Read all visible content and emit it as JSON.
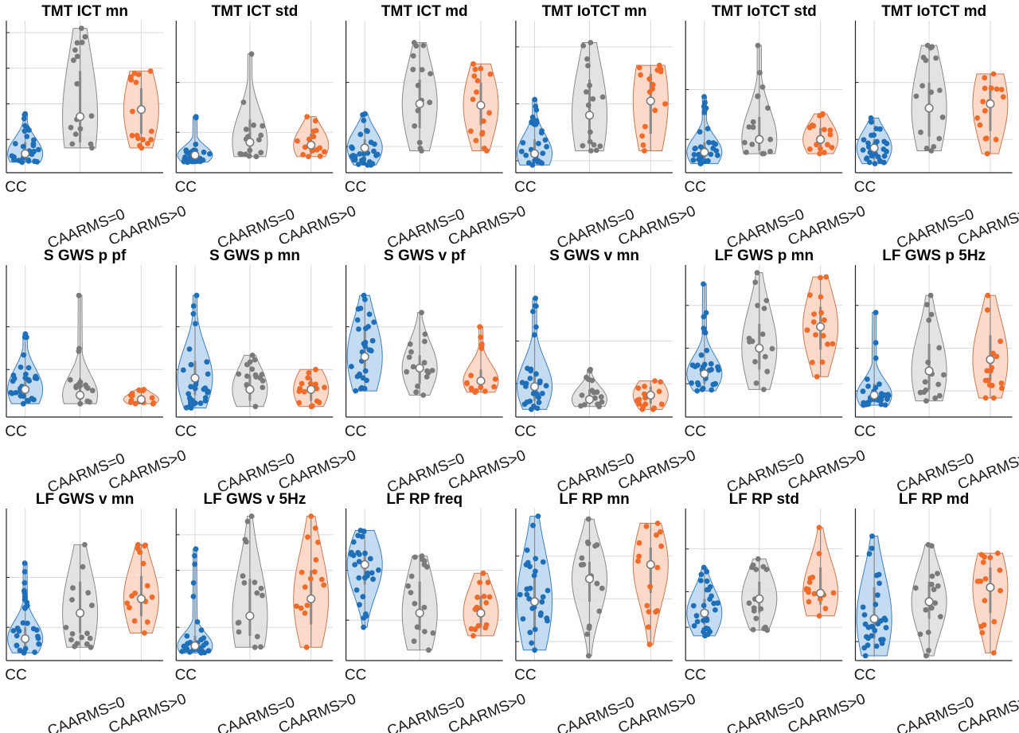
{
  "figure": {
    "categories": [
      "CC",
      "CAARMS=0",
      "CAARMS>0"
    ],
    "colors": {
      "CC": {
        "face": "#b9d6ee",
        "edge": "#3f7fbf",
        "point": "#1f6fb8"
      },
      "CAARMS=0": {
        "face": "#dedede",
        "edge": "#8a8a8a",
        "point": "#7a7a7a"
      },
      "CAARMS>0": {
        "face": "#fcd2be",
        "edge": "#c87a55",
        "point": "#f06a2a"
      },
      "median_fill": "#ffffff",
      "median_edge": "#777777",
      "whisker": "#8a8a8a",
      "grid": "#d9d9d9",
      "axis": "#222222"
    }
  },
  "chart_data": [
    {
      "type": "violin",
      "title": "TMT ICT mn",
      "grid": true,
      "yticks": [
        0.2,
        0.45,
        0.7,
        0.95
      ],
      "series": [
        {
          "name": "CC",
          "min": 0.04,
          "max": 0.38,
          "median": 0.1,
          "q1": 0.06,
          "q3": 0.18,
          "n": 30
        },
        {
          "name": "CAARMS=0",
          "min": 0.14,
          "max": 0.98,
          "median": 0.36,
          "q1": 0.18,
          "q3": 0.68,
          "n": 16
        },
        {
          "name": "CAARMS>0",
          "min": 0.14,
          "max": 0.68,
          "median": 0.41,
          "q1": 0.24,
          "q3": 0.56,
          "n": 16
        }
      ]
    },
    {
      "type": "violin",
      "title": "TMT ICT std",
      "grid": true,
      "yticks": [
        0.25,
        0.6
      ],
      "series": [
        {
          "name": "CC",
          "min": 0.04,
          "max": 0.36,
          "median": 0.09,
          "q1": 0.06,
          "q3": 0.13,
          "n": 30
        },
        {
          "name": "CAARMS=0",
          "min": 0.08,
          "max": 0.8,
          "median": 0.18,
          "q1": 0.1,
          "q3": 0.34,
          "n": 16
        },
        {
          "name": "CAARMS>0",
          "min": 0.08,
          "max": 0.36,
          "median": 0.16,
          "q1": 0.1,
          "q3": 0.24,
          "n": 16
        }
      ]
    },
    {
      "type": "violin",
      "title": "TMT ICT md",
      "grid": true,
      "yticks": [
        0.15,
        0.6
      ],
      "series": [
        {
          "name": "CC",
          "min": 0.02,
          "max": 0.38,
          "median": 0.14,
          "q1": 0.06,
          "q3": 0.2,
          "n": 30
        },
        {
          "name": "CAARMS=0",
          "min": 0.12,
          "max": 0.88,
          "median": 0.45,
          "q1": 0.28,
          "q3": 0.62,
          "n": 16
        },
        {
          "name": "CAARMS>0",
          "min": 0.12,
          "max": 0.73,
          "median": 0.44,
          "q1": 0.3,
          "q3": 0.6,
          "n": 16
        }
      ]
    },
    {
      "type": "violin",
      "title": "TMT IoTCT mn",
      "grid": true,
      "yticks": [
        0.05,
        0.45,
        0.85
      ],
      "series": [
        {
          "name": "CC",
          "min": 0.02,
          "max": 0.48,
          "median": 0.1,
          "q1": 0.05,
          "q3": 0.2,
          "n": 30
        },
        {
          "name": "CAARMS=0",
          "min": 0.12,
          "max": 0.88,
          "median": 0.37,
          "q1": 0.2,
          "q3": 0.62,
          "n": 16
        },
        {
          "name": "CAARMS>0",
          "min": 0.12,
          "max": 0.72,
          "median": 0.47,
          "q1": 0.24,
          "q3": 0.66,
          "n": 16
        }
      ]
    },
    {
      "type": "violin",
      "title": "TMT IoTCT std",
      "grid": true,
      "yticks": [
        0.2,
        0.55
      ],
      "series": [
        {
          "name": "CC",
          "min": 0.03,
          "max": 0.5,
          "median": 0.11,
          "q1": 0.06,
          "q3": 0.18,
          "n": 30
        },
        {
          "name": "CAARMS=0",
          "min": 0.1,
          "max": 0.86,
          "median": 0.2,
          "q1": 0.12,
          "q3": 0.36,
          "n": 16
        },
        {
          "name": "CAARMS>0",
          "min": 0.1,
          "max": 0.38,
          "median": 0.2,
          "q1": 0.14,
          "q3": 0.28,
          "n": 16
        }
      ]
    },
    {
      "type": "violin",
      "title": "TMT IoTCT md",
      "grid": true,
      "yticks": [
        0.2,
        0.6
      ],
      "series": [
        {
          "name": "CC",
          "min": 0.03,
          "max": 0.35,
          "median": 0.14,
          "q1": 0.06,
          "q3": 0.2,
          "n": 30
        },
        {
          "name": "CAARMS=0",
          "min": 0.12,
          "max": 0.86,
          "median": 0.42,
          "q1": 0.22,
          "q3": 0.6,
          "n": 16
        },
        {
          "name": "CAARMS>0",
          "min": 0.1,
          "max": 0.66,
          "median": 0.45,
          "q1": 0.26,
          "q3": 0.58,
          "n": 16
        }
      ]
    },
    {
      "type": "violin",
      "title": "S GWS p pf",
      "grid": true,
      "yticks": [
        0.3,
        0.6
      ],
      "series": [
        {
          "name": "CC",
          "min": 0.06,
          "max": 0.55,
          "median": 0.16,
          "q1": 0.1,
          "q3": 0.26,
          "n": 30
        },
        {
          "name": "CAARMS=0",
          "min": 0.06,
          "max": 0.82,
          "median": 0.12,
          "q1": 0.08,
          "q3": 0.24,
          "n": 16
        },
        {
          "name": "CAARMS>0",
          "min": 0.06,
          "max": 0.16,
          "median": 0.09,
          "q1": 0.07,
          "q3": 0.12,
          "n": 16
        }
      ]
    },
    {
      "type": "violin",
      "title": "S GWS p mn",
      "grid": true,
      "yticks": [
        0.3,
        0.6
      ],
      "series": [
        {
          "name": "CC",
          "min": 0.03,
          "max": 0.82,
          "median": 0.24,
          "q1": 0.12,
          "q3": 0.36,
          "n": 30
        },
        {
          "name": "CAARMS=0",
          "min": 0.04,
          "max": 0.4,
          "median": 0.16,
          "q1": 0.08,
          "q3": 0.26,
          "n": 16
        },
        {
          "name": "CAARMS>0",
          "min": 0.04,
          "max": 0.3,
          "median": 0.16,
          "q1": 0.08,
          "q3": 0.24,
          "n": 16
        }
      ]
    },
    {
      "type": "violin",
      "title": "S GWS v pf",
      "grid": true,
      "yticks": [
        0.6
      ],
      "series": [
        {
          "name": "CC",
          "min": 0.15,
          "max": 0.82,
          "median": 0.39,
          "q1": 0.28,
          "q3": 0.58,
          "n": 30
        },
        {
          "name": "CAARMS=0",
          "min": 0.12,
          "max": 0.7,
          "median": 0.31,
          "q1": 0.2,
          "q3": 0.4,
          "n": 16
        },
        {
          "name": "CAARMS>0",
          "min": 0.14,
          "max": 0.6,
          "median": 0.22,
          "q1": 0.17,
          "q3": 0.3,
          "n": 16
        }
      ]
    },
    {
      "type": "violin",
      "title": "S GWS v mn",
      "grid": true,
      "yticks": [
        0.2,
        0.5
      ],
      "series": [
        {
          "name": "CC",
          "min": 0.02,
          "max": 0.8,
          "median": 0.18,
          "q1": 0.08,
          "q3": 0.28,
          "n": 30
        },
        {
          "name": "CAARMS=0",
          "min": 0.04,
          "max": 0.3,
          "median": 0.09,
          "q1": 0.06,
          "q3": 0.16,
          "n": 16
        },
        {
          "name": "CAARMS>0",
          "min": 0.02,
          "max": 0.22,
          "median": 0.12,
          "q1": 0.06,
          "q3": 0.18,
          "n": 16
        }
      ]
    },
    {
      "type": "violin",
      "title": "LF GWS p mn",
      "grid": true,
      "yticks": [
        0.2,
        0.45,
        0.75
      ],
      "series": [
        {
          "name": "CC",
          "min": 0.15,
          "max": 0.9,
          "median": 0.27,
          "q1": 0.2,
          "q3": 0.34,
          "n": 30
        },
        {
          "name": "CAARMS=0",
          "min": 0.16,
          "max": 0.98,
          "median": 0.45,
          "q1": 0.3,
          "q3": 0.62,
          "n": 16
        },
        {
          "name": "CAARMS>0",
          "min": 0.25,
          "max": 0.95,
          "median": 0.6,
          "q1": 0.44,
          "q3": 0.74,
          "n": 16
        }
      ]
    },
    {
      "type": "violin",
      "title": "LF GWS p 5Hz",
      "grid": true,
      "yticks": [
        0.15,
        0.45,
        0.75
      ],
      "series": [
        {
          "name": "CC",
          "min": 0.05,
          "max": 0.7,
          "median": 0.12,
          "q1": 0.08,
          "q3": 0.2,
          "n": 30
        },
        {
          "name": "CAARMS=0",
          "min": 0.08,
          "max": 0.82,
          "median": 0.29,
          "q1": 0.16,
          "q3": 0.48,
          "n": 16
        },
        {
          "name": "CAARMS>0",
          "min": 0.1,
          "max": 0.82,
          "median": 0.37,
          "q1": 0.22,
          "q3": 0.54,
          "n": 16
        }
      ]
    },
    {
      "type": "violin",
      "title": "LF GWS v mn",
      "grid": true,
      "yticks": [
        0.2,
        0.55
      ],
      "series": [
        {
          "name": "CC",
          "min": 0.02,
          "max": 0.65,
          "median": 0.12,
          "q1": 0.06,
          "q3": 0.2,
          "n": 30
        },
        {
          "name": "CAARMS=0",
          "min": 0.06,
          "max": 0.78,
          "median": 0.3,
          "q1": 0.16,
          "q3": 0.52,
          "n": 16
        },
        {
          "name": "CAARMS>0",
          "min": 0.16,
          "max": 0.78,
          "median": 0.4,
          "q1": 0.28,
          "q3": 0.56,
          "n": 16
        }
      ]
    },
    {
      "type": "violin",
      "title": "LF GWS v 5Hz",
      "grid": true,
      "yticks": [
        0.2,
        0.6,
        0.85
      ],
      "series": [
        {
          "name": "CC",
          "min": 0.02,
          "max": 0.75,
          "median": 0.07,
          "q1": 0.04,
          "q3": 0.14,
          "n": 30
        },
        {
          "name": "CAARMS=0",
          "min": 0.06,
          "max": 0.98,
          "median": 0.28,
          "q1": 0.14,
          "q3": 0.54,
          "n": 16
        },
        {
          "name": "CAARMS>0",
          "min": 0.06,
          "max": 0.98,
          "median": 0.4,
          "q1": 0.22,
          "q3": 0.6,
          "n": 16
        }
      ]
    },
    {
      "type": "violin",
      "title": "LF RP freq",
      "grid": true,
      "yticks": [
        0.25,
        0.6
      ],
      "series": [
        {
          "name": "CC",
          "min": 0.2,
          "max": 0.88,
          "median": 0.64,
          "q1": 0.5,
          "q3": 0.74,
          "n": 30
        },
        {
          "name": "CAARMS=0",
          "min": 0.04,
          "max": 0.7,
          "median": 0.3,
          "q1": 0.18,
          "q3": 0.52,
          "n": 16
        },
        {
          "name": "CAARMS>0",
          "min": 0.14,
          "max": 0.58,
          "median": 0.3,
          "q1": 0.2,
          "q3": 0.42,
          "n": 16
        }
      ]
    },
    {
      "type": "violin",
      "title": "LF RP mn",
      "grid": true,
      "yticks": [
        0.1,
        0.4,
        0.7
      ],
      "series": [
        {
          "name": "CC",
          "min": 0.04,
          "max": 0.98,
          "median": 0.38,
          "q1": 0.2,
          "q3": 0.6,
          "n": 30
        },
        {
          "name": "CAARMS=0",
          "min": 0.0,
          "max": 0.96,
          "median": 0.54,
          "q1": 0.38,
          "q3": 0.66,
          "n": 16
        },
        {
          "name": "CAARMS>0",
          "min": 0.08,
          "max": 0.93,
          "median": 0.64,
          "q1": 0.44,
          "q3": 0.76,
          "n": 16
        }
      ]
    },
    {
      "type": "violin",
      "title": "LF RP std",
      "grid": true,
      "yticks": [
        0.2,
        0.45,
        0.75
      ],
      "series": [
        {
          "name": "CC",
          "min": 0.14,
          "max": 0.62,
          "median": 0.3,
          "q1": 0.22,
          "q3": 0.4,
          "n": 30
        },
        {
          "name": "CAARMS=0",
          "min": 0.18,
          "max": 0.68,
          "median": 0.4,
          "q1": 0.3,
          "q3": 0.52,
          "n": 16
        },
        {
          "name": "CAARMS>0",
          "min": 0.28,
          "max": 0.9,
          "median": 0.44,
          "q1": 0.36,
          "q3": 0.62,
          "n": 16
        }
      ]
    },
    {
      "type": "violin",
      "title": "LF RP md",
      "grid": true,
      "yticks": [
        0.1,
        0.7
      ],
      "series": [
        {
          "name": "CC",
          "min": 0.0,
          "max": 0.84,
          "median": 0.26,
          "q1": 0.12,
          "q3": 0.48,
          "n": 30
        },
        {
          "name": "CAARMS=0",
          "min": 0.0,
          "max": 0.78,
          "median": 0.38,
          "q1": 0.26,
          "q3": 0.52,
          "n": 16
        },
        {
          "name": "CAARMS>0",
          "min": 0.02,
          "max": 0.72,
          "median": 0.48,
          "q1": 0.3,
          "q3": 0.62,
          "n": 16
        }
      ]
    }
  ]
}
